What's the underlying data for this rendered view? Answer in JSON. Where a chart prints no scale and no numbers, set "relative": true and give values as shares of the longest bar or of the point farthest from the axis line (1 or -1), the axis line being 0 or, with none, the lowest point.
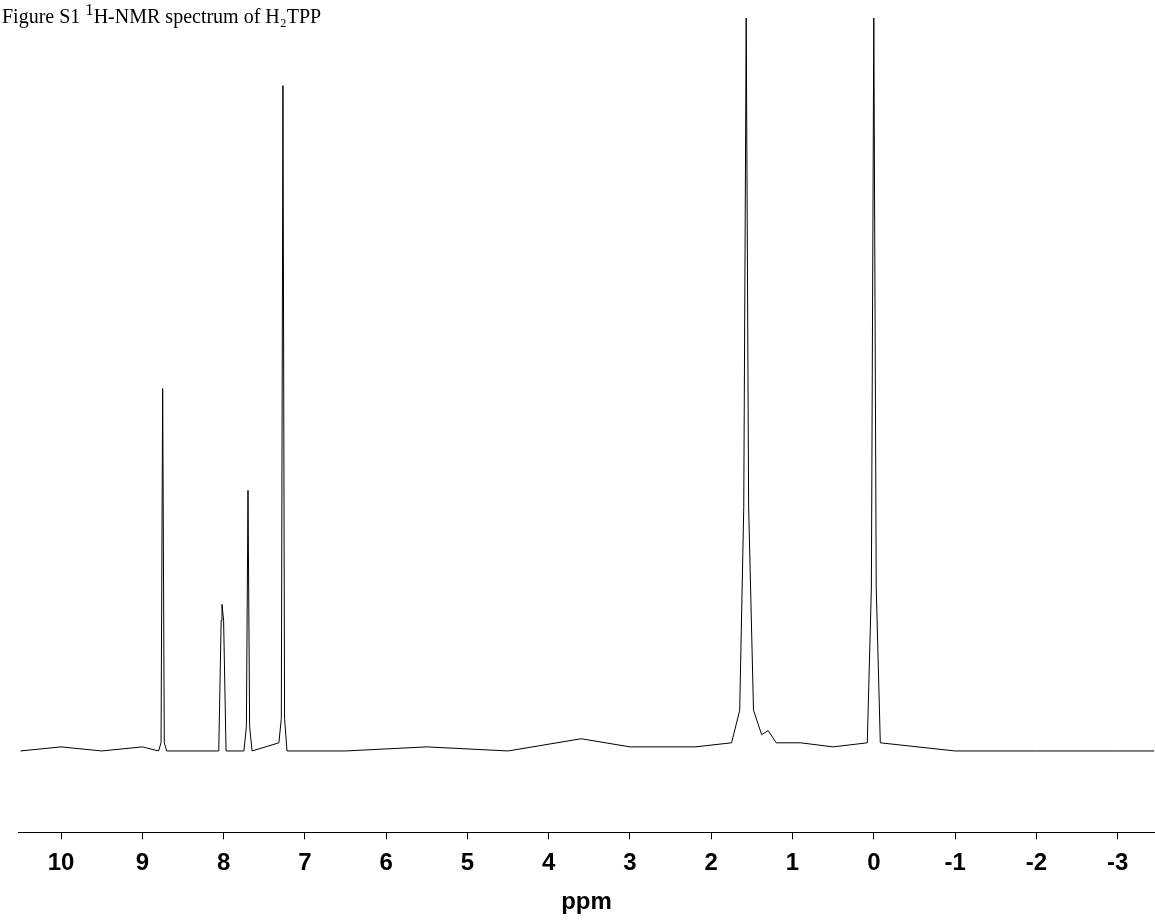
{
  "chart_data": {
    "type": "line",
    "title": "Figure S1 $^{1}$H-NMR spectrum of H₂TPP",
    "xlabel": "ppm",
    "relative": true,
    "xlim": [
      10.53,
      -3.46
    ],
    "xticks": [
      10,
      9,
      8,
      7,
      6,
      5,
      4,
      3,
      2,
      1,
      0,
      -1,
      -2,
      -3
    ],
    "grid": false,
    "series": [
      {
        "color": "#000000",
        "x": [
          10.5,
          10,
          9.5,
          9,
          8.8,
          8.77,
          8.75,
          8.73,
          8.7,
          8.4,
          8.06,
          8.03,
          8.02,
          8.0,
          7.97,
          7.75,
          7.72,
          7.7,
          7.68,
          7.65,
          7.32,
          7.29,
          7.27,
          7.25,
          7.22,
          6.5,
          5.5,
          4.5,
          3.6,
          3.0,
          2.2,
          1.75,
          1.65,
          1.6,
          1.57,
          1.54,
          1.48,
          1.38,
          1.3,
          1.2,
          0.9,
          0.5,
          0.08,
          0.03,
          0,
          -0.03,
          -0.08,
          -1,
          -2,
          -3,
          -3.45
        ],
        "values": [
          0.1,
          0.105,
          0.1,
          0.105,
          0.1,
          0.11,
          0.545,
          0.11,
          0.1,
          0.1,
          0.1,
          0.26,
          0.28,
          0.26,
          0.1,
          0.1,
          0.13,
          0.42,
          0.13,
          0.1,
          0.11,
          0.14,
          0.917,
          0.14,
          0.1,
          0.1,
          0.105,
          0.1,
          0.115,
          0.105,
          0.105,
          0.11,
          0.15,
          0.4,
          1,
          0.4,
          0.15,
          0.12,
          0.125,
          0.11,
          0.11,
          0.105,
          0.11,
          0.3,
          1,
          0.3,
          0.11,
          0.1,
          0.1,
          0.1,
          0.1
        ]
      }
    ]
  }
}
